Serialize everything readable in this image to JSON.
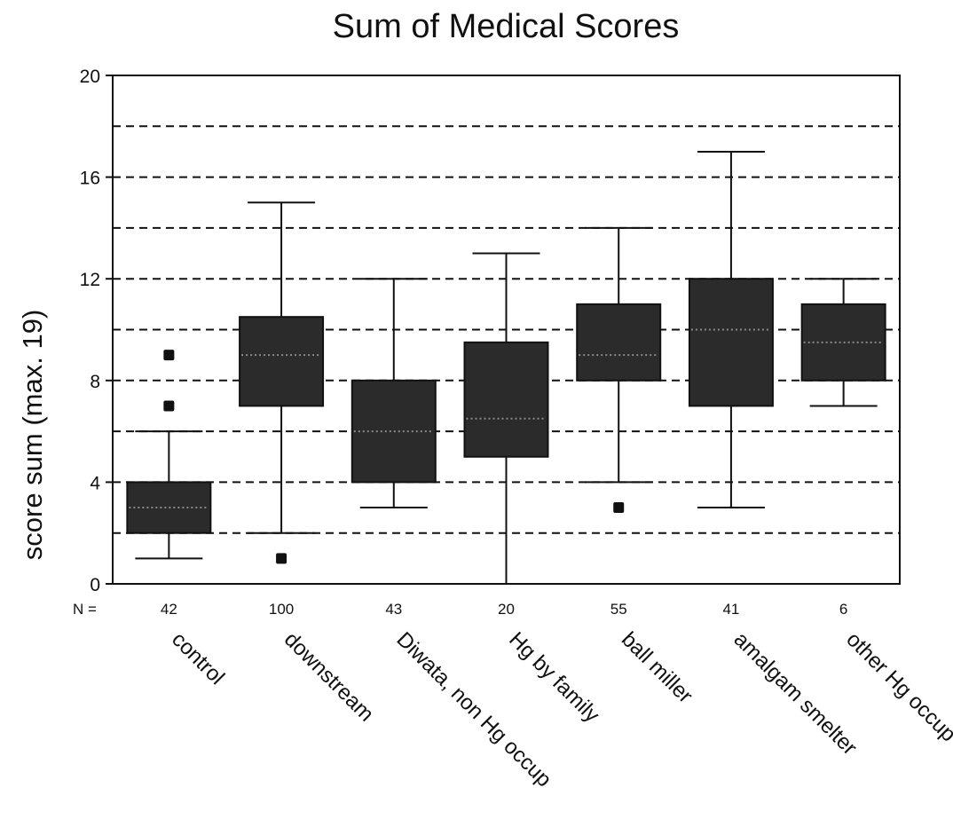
{
  "chart_data": {
    "type": "boxplot",
    "title": "Sum of Medical Scores",
    "ylabel": "score sum (max. 19)",
    "ylim": [
      0,
      20
    ],
    "yticks": [
      0,
      4,
      8,
      12,
      16,
      20
    ],
    "gridlines": [
      2,
      4,
      6,
      8,
      10,
      12,
      14,
      16,
      18
    ],
    "grid": "dashed horizontal",
    "n_label": "N =",
    "categories": [
      "control",
      "downstream",
      "Diwata, non Hg occup",
      "Hg by family",
      "ball miller",
      "amalgam smelter",
      "other Hg occup"
    ],
    "n": [
      "42",
      "100",
      "43",
      "20",
      "55",
      "41",
      "6"
    ],
    "boxes": [
      {
        "min": 1,
        "q1": 2,
        "median": 3,
        "q3": 4,
        "max": 6,
        "outliers": [
          7,
          9
        ]
      },
      {
        "min": 2,
        "q1": 7,
        "median": 9,
        "q3": 10.5,
        "max": 15,
        "outliers": [
          1
        ]
      },
      {
        "min": 3,
        "q1": 4,
        "median": 6,
        "q3": 8,
        "max": 12,
        "outliers": []
      },
      {
        "min": 0,
        "q1": 5,
        "median": 6.5,
        "q3": 9.5,
        "max": 13,
        "outliers": []
      },
      {
        "min": 4,
        "q1": 8,
        "median": 9,
        "q3": 11,
        "max": 14,
        "outliers": [
          3
        ]
      },
      {
        "min": 3,
        "q1": 7,
        "median": 10,
        "q3": 12,
        "max": 17,
        "outliers": []
      },
      {
        "min": 7,
        "q1": 8,
        "median": 9.5,
        "q3": 11,
        "max": 12,
        "outliers": []
      }
    ],
    "colors": {
      "box": "#2b2b2b",
      "median": "#8a8a8a",
      "line": "#111111",
      "grid": "#111111"
    }
  }
}
